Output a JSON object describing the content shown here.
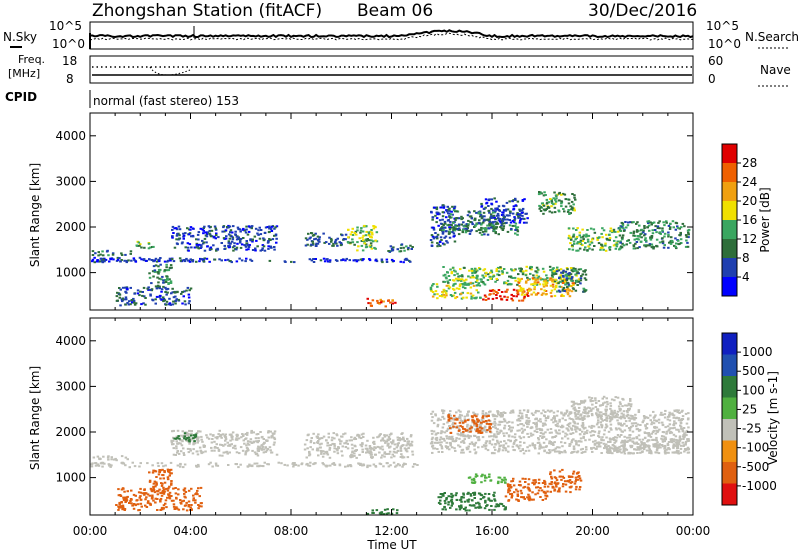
{
  "header": {
    "station": "Zhongshan Station (fitACF)",
    "beam": "Beam 06",
    "date": "30/Dec/2016"
  },
  "noise_panel": {
    "left_label": "N.Sky",
    "left_ticks": [
      "10^5",
      "10^0"
    ],
    "right_label": "N.Search",
    "right_ticks": [
      "10^5",
      "10^0"
    ]
  },
  "freq_panel": {
    "label_line1": "Freq.",
    "label_line2": "[MHz]",
    "left_ticks": [
      "18",
      "8"
    ],
    "right_label": "Nave",
    "right_ticks": [
      "60",
      "0"
    ]
  },
  "cpid_panel": {
    "label": "CPID",
    "text": "normal (fast stereo) 153"
  },
  "colors": {
    "power": [
      "#0000ff",
      "#1f3fb0",
      "#2e6e3a",
      "#3aa660",
      "#f0e000",
      "#f0a010",
      "#ef6000",
      "#e00000"
    ],
    "velocity": [
      "#1020c0",
      "#2050b0",
      "#2e7a3a",
      "#50b040",
      "#c0c0b8",
      "#f09010",
      "#e06010",
      "#e01010"
    ]
  },
  "chart_data": [
    {
      "type": "heatmap",
      "title": "",
      "xlabel": "",
      "ylabel": "Slant Range [km]",
      "ylim": [
        180,
        4500
      ],
      "yticks": [
        "4000",
        "3000",
        "2000",
        "1000"
      ],
      "xlim_hours": [
        0,
        24
      ],
      "colorbar": {
        "label": "Power [dB]",
        "range": [
          0,
          32
        ],
        "ticks": [
          "28",
          "24",
          "20",
          "16",
          "12",
          "8",
          "4"
        ]
      },
      "patches": [
        {
          "t": [
            0.0,
            4.8
          ],
          "r": [
            1250,
            1350
          ],
          "v": 6
        },
        {
          "t": [
            0.0,
            1.6
          ],
          "r": [
            1400,
            1500
          ],
          "v": 9
        },
        {
          "t": [
            1.8,
            2.6
          ],
          "r": [
            1550,
            1700
          ],
          "v": 13
        },
        {
          "t": [
            3.2,
            7.4
          ],
          "r": [
            1500,
            2050
          ],
          "v": 6
        },
        {
          "t": [
            8.5,
            10.2
          ],
          "r": [
            1600,
            1900
          ],
          "v": 8
        },
        {
          "t": [
            10.2,
            11.4
          ],
          "r": [
            1500,
            2050
          ],
          "v": 15
        },
        {
          "t": [
            11.8,
            12.8
          ],
          "r": [
            1450,
            1650
          ],
          "v": 10
        },
        {
          "t": [
            0.0,
            12.8
          ],
          "r": [
            1250,
            1330
          ],
          "v": 5
        },
        {
          "t": [
            2.3,
            3.2
          ],
          "r": [
            700,
            1200
          ],
          "v": 11
        },
        {
          "t": [
            1.0,
            4.0
          ],
          "r": [
            300,
            700
          ],
          "v": 7
        },
        {
          "t": [
            11.0,
            12.2
          ],
          "r": [
            280,
            450
          ],
          "v": 27
        },
        {
          "t": [
            13.5,
            14.5
          ],
          "r": [
            1600,
            2500
          ],
          "v": 6
        },
        {
          "t": [
            14.2,
            16.5
          ],
          "r": [
            1900,
            2400
          ],
          "v": 9
        },
        {
          "t": [
            15.5,
            17.4
          ],
          "r": [
            2100,
            2650
          ],
          "v": 6
        },
        {
          "t": [
            17.8,
            19.3
          ],
          "r": [
            2300,
            2800
          ],
          "v": 13
        },
        {
          "t": [
            19.0,
            21.2
          ],
          "r": [
            1500,
            2000
          ],
          "v": 14
        },
        {
          "t": [
            21.0,
            23.8
          ],
          "r": [
            1550,
            2150
          ],
          "v": 11
        },
        {
          "t": [
            14.0,
            17.0
          ],
          "r": [
            1850,
            2100
          ],
          "v": 10
        },
        {
          "t": [
            14.0,
            19.5
          ],
          "r": [
            750,
            1150
          ],
          "v": 14
        },
        {
          "t": [
            13.5,
            15.5
          ],
          "r": [
            450,
            800
          ],
          "v": 17
        },
        {
          "t": [
            15.6,
            17.4
          ],
          "r": [
            400,
            650
          ],
          "v": 29
        },
        {
          "t": [
            17.0,
            19.2
          ],
          "r": [
            500,
            900
          ],
          "v": 21
        },
        {
          "t": [
            18.5,
            19.7
          ],
          "r": [
            600,
            1100
          ],
          "v": 10
        }
      ]
    },
    {
      "type": "heatmap",
      "title": "",
      "xlabel": "Time UT",
      "ylabel": "Slant Range [km]",
      "ylim": [
        180,
        4500
      ],
      "yticks": [
        "4000",
        "3000",
        "2000",
        "1000"
      ],
      "xticks": [
        "00:00",
        "04:00",
        "08:00",
        "12:00",
        "16:00",
        "20:00",
        "00:00"
      ],
      "xlim_hours": [
        0,
        24
      ],
      "colorbar": {
        "label": "Velocity [m s-1]",
        "ticks": [
          "1000",
          "500",
          "100",
          "25",
          "-25",
          "-100",
          "-500",
          "-1000"
        ]
      },
      "patches": [
        {
          "t": [
            0.0,
            13.0
          ],
          "r": [
            1250,
            1350
          ],
          "v": 0
        },
        {
          "t": [
            0.0,
            1.6
          ],
          "r": [
            1400,
            1500
          ],
          "v": 0
        },
        {
          "t": [
            3.2,
            7.4
          ],
          "r": [
            1500,
            2050
          ],
          "v": 0
        },
        {
          "t": [
            8.5,
            12.8
          ],
          "r": [
            1450,
            2000
          ],
          "v": 0
        },
        {
          "t": [
            3.3,
            4.2
          ],
          "r": [
            1800,
            2000
          ],
          "v": 150
        },
        {
          "t": [
            2.3,
            3.2
          ],
          "r": [
            700,
            1200
          ],
          "v": -300
        },
        {
          "t": [
            1.0,
            4.4
          ],
          "r": [
            300,
            800
          ],
          "v": -400
        },
        {
          "t": [
            11.0,
            12.2
          ],
          "r": [
            220,
            350
          ],
          "v": 150
        },
        {
          "t": [
            13.5,
            23.8
          ],
          "r": [
            1550,
            2500
          ],
          "v": 0
        },
        {
          "t": [
            14.2,
            16.0
          ],
          "r": [
            2000,
            2400
          ],
          "v": -300
        },
        {
          "t": [
            19.0,
            21.5
          ],
          "r": [
            2300,
            2800
          ],
          "v": 0
        },
        {
          "t": [
            20.5,
            23.8
          ],
          "r": [
            1550,
            1900
          ],
          "v": 0
        },
        {
          "t": [
            13.8,
            16.5
          ],
          "r": [
            300,
            700
          ],
          "v": 200
        },
        {
          "t": [
            16.5,
            18.2
          ],
          "r": [
            500,
            1000
          ],
          "v": -400
        },
        {
          "t": [
            18.2,
            19.5
          ],
          "r": [
            700,
            1200
          ],
          "v": -150
        },
        {
          "t": [
            15.0,
            16.5
          ],
          "r": [
            900,
            1100
          ],
          "v": 60
        }
      ]
    }
  ]
}
